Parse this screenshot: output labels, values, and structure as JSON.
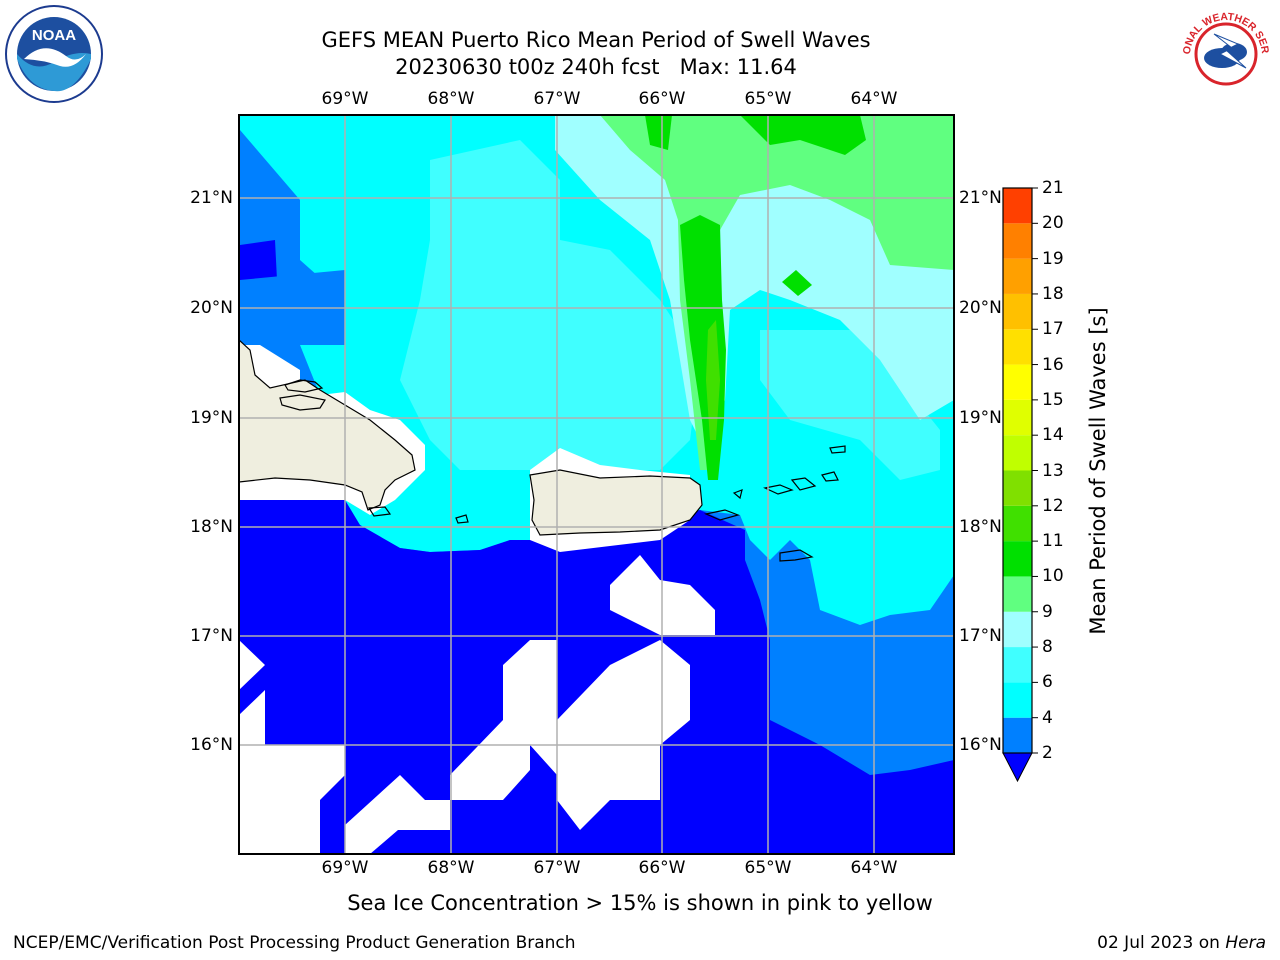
{
  "header": {
    "title": "GEFS MEAN Puerto Rico Mean Period of Swell Waves",
    "subtitle": "20230630 t00z 240h fcst   Max: 11.64"
  },
  "logos": {
    "noaa": "NOAA",
    "nws": "NATIONAL WEATHER SERVICE"
  },
  "map": {
    "longitude_labels": [
      "69°W",
      "68°W",
      "67°W",
      "66°W",
      "65°W",
      "64°W"
    ],
    "latitude_labels": [
      "21°N",
      "20°N",
      "19°N",
      "18°N",
      "17°N",
      "16°N"
    ],
    "extent": {
      "lon_min": -70.0,
      "lon_max": -63.25,
      "lat_min": 15.0,
      "lat_max": 21.75
    },
    "land_color": "#efeedf",
    "missing_color": "#ffffff"
  },
  "colorbar": {
    "title": "Mean Period of Swell Waves [s]",
    "tick_labels": [
      "2",
      "4",
      "6",
      "8",
      "9",
      "10",
      "11",
      "12",
      "13",
      "14",
      "15",
      "16",
      "17",
      "18",
      "19",
      "20",
      "21"
    ],
    "levels": [
      2,
      4,
      6,
      8,
      9,
      10,
      11,
      12,
      13,
      14,
      15,
      16,
      17,
      18,
      19,
      20,
      21
    ],
    "colors": [
      "#0080ff",
      "#00ffff",
      "#40ffff",
      "#a0ffff",
      "#60ff80",
      "#00e000",
      "#40e000",
      "#80e000",
      "#c0ff00",
      "#e0ff00",
      "#ffff00",
      "#ffe000",
      "#ffc000",
      "#ffa000",
      "#ff8000",
      "#ff4000",
      "#ff0000"
    ],
    "under_color": "#0000ff"
  },
  "footer": {
    "note": "Sea Ice Concentration > 15% is shown in pink to yellow",
    "credit_left": "NCEP/EMC/Verification Post Processing Product Generation Branch",
    "credit_date": "02 Jul 2023 on ",
    "credit_host": "Hera"
  }
}
